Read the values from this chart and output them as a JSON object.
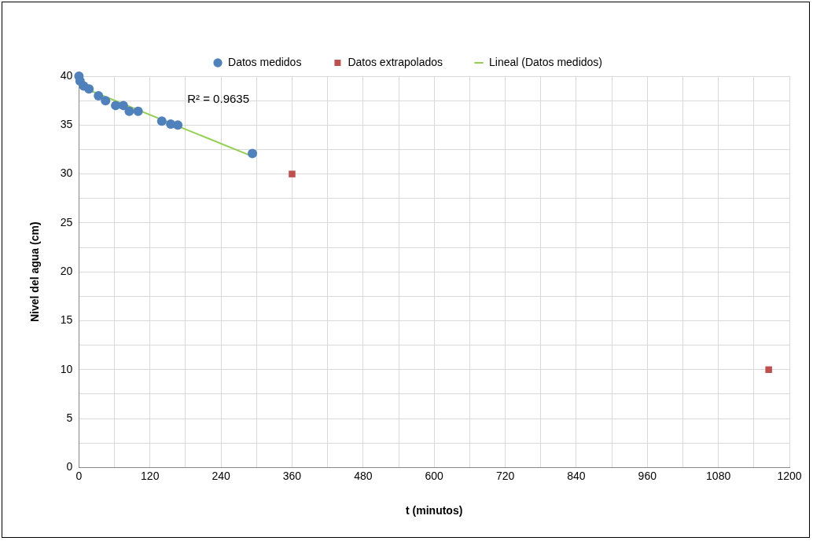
{
  "chart_data": {
    "type": "scatter",
    "xlabel": "t (minutos)",
    "ylabel": "Nivel del agua (cm)",
    "xlim": [
      0,
      1200
    ],
    "ylim": [
      0,
      40
    ],
    "xticks": [
      0,
      {
        "value": 60,
        "label": null
      },
      120,
      {
        "value": 180,
        "label": null
      },
      240,
      {
        "value": 300,
        "label": null
      },
      360,
      {
        "value": 420,
        "label": null
      },
      480,
      {
        "value": 540,
        "label": null
      },
      600,
      {
        "value": 660,
        "label": null
      },
      720,
      {
        "value": 780,
        "label": null
      },
      840,
      {
        "value": 900,
        "label": null
      },
      960,
      {
        "value": 1020,
        "label": null
      },
      1080,
      {
        "value": 1140,
        "label": null
      },
      1200
    ],
    "yticks": [
      0,
      {
        "value": 2.5,
        "label": null
      },
      5,
      {
        "value": 7.5,
        "label": null
      },
      10,
      {
        "value": 12.5,
        "label": null
      },
      15,
      {
        "value": 17.5,
        "label": null
      },
      20,
      {
        "value": 22.5,
        "label": null
      },
      25,
      {
        "value": 27.5,
        "label": null
      },
      30,
      {
        "value": 32.5,
        "label": null
      },
      35,
      {
        "value": 37.5,
        "label": null
      },
      40
    ],
    "grid": true,
    "legend": "top",
    "series": [
      {
        "name": "Datos medidos",
        "type": "scatter",
        "marker": "circle",
        "color": "#4f81bd",
        "x": [
          0,
          2,
          8,
          17,
          33,
          45,
          62,
          75,
          85,
          100,
          140,
          155,
          167,
          293
        ],
        "values": [
          40,
          39.5,
          39,
          38.7,
          38,
          37.5,
          37,
          37,
          36.4,
          36.4,
          35.4,
          35.1,
          35,
          32.1
        ]
      },
      {
        "name": "Datos extrapolados",
        "type": "scatter",
        "marker": "square",
        "color": "#c0504d",
        "x": [
          360,
          1165
        ],
        "values": [
          30,
          10
        ]
      },
      {
        "name": "Lineal (Datos medidos)",
        "type": "line",
        "marker": "none",
        "color": "#92d050",
        "x": [
          0,
          293
        ],
        "values": [
          39,
          31.8
        ]
      }
    ],
    "annotations": [
      "R² = 0.9635"
    ]
  }
}
